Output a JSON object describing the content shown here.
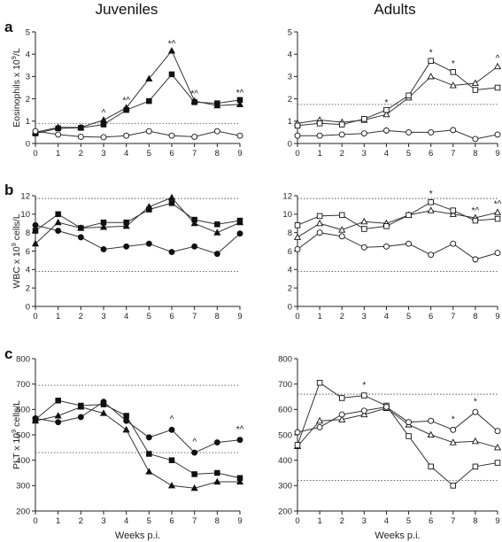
{
  "column_titles": [
    "Juveniles",
    "Adults"
  ],
  "chart_data": [
    {
      "id": "a-juveniles",
      "panel": "a",
      "column": "Juveniles",
      "type": "line",
      "ylabel_main": "Eosinophils x 10",
      "ylabel_sup": "9",
      "ylabel_tail": "/L",
      "xlabel": "",
      "ylim": [
        0,
        5
      ],
      "yticks": [
        0,
        1,
        2,
        3,
        4,
        5
      ],
      "x": [
        0,
        1,
        2,
        3,
        4,
        5,
        6,
        7,
        8,
        9
      ],
      "reference_lines": [
        0.9
      ],
      "series": [
        {
          "marker": "filled-triangle",
          "values": [
            0.5,
            0.72,
            0.72,
            1.05,
            1.6,
            2.9,
            4.15,
            1.9,
            1.7,
            1.75
          ]
        },
        {
          "marker": "filled-square",
          "values": [
            0.45,
            0.68,
            0.7,
            0.85,
            1.5,
            1.9,
            3.1,
            1.85,
            1.8,
            1.95
          ]
        },
        {
          "marker": "open-circle",
          "values": [
            0.55,
            0.4,
            0.3,
            0.28,
            0.35,
            0.55,
            0.35,
            0.3,
            0.55,
            0.35
          ]
        }
      ],
      "annotations": [
        {
          "x": 3,
          "y": 1.25,
          "text": "^"
        },
        {
          "x": 4,
          "y": 1.8,
          "text": "*^"
        },
        {
          "x": 6,
          "y": 4.35,
          "text": "*^"
        },
        {
          "x": 7,
          "y": 2.1,
          "text": "*^"
        },
        {
          "x": 9,
          "y": 2.15,
          "text": "*^"
        }
      ]
    },
    {
      "id": "a-adults",
      "panel": "a",
      "column": "Adults",
      "type": "line",
      "ylabel_main": "",
      "ylabel_sup": "",
      "ylabel_tail": "",
      "xlabel": "",
      "ylim": [
        0,
        5
      ],
      "yticks": [
        0,
        1,
        2,
        3,
        4,
        5
      ],
      "x": [
        0,
        1,
        2,
        3,
        4,
        5,
        6,
        7,
        8,
        9
      ],
      "reference_lines": [
        1.75
      ],
      "series": [
        {
          "marker": "open-triangle",
          "values": [
            0.9,
            1.05,
            0.95,
            1.05,
            1.3,
            2.05,
            3.0,
            2.6,
            2.7,
            3.45
          ]
        },
        {
          "marker": "open-square",
          "values": [
            0.8,
            0.9,
            0.85,
            1.1,
            1.5,
            2.15,
            3.7,
            3.2,
            2.4,
            2.5
          ]
        },
        {
          "marker": "open-circle",
          "values": [
            0.35,
            0.35,
            0.4,
            0.45,
            0.58,
            0.5,
            0.5,
            0.6,
            0.2,
            0.4
          ]
        }
      ],
      "annotations": [
        {
          "x": 4,
          "y": 1.7,
          "text": "*"
        },
        {
          "x": 6,
          "y": 3.95,
          "text": "*"
        },
        {
          "x": 7,
          "y": 3.45,
          "text": "*"
        },
        {
          "x": 9,
          "y": 3.7,
          "text": "^"
        }
      ]
    },
    {
      "id": "b-juveniles",
      "panel": "b",
      "column": "Juveniles",
      "type": "line",
      "ylabel_main": "WBC x 10",
      "ylabel_sup": "9",
      "ylabel_tail": " cells/L",
      "xlabel": "",
      "ylim": [
        0,
        12
      ],
      "yticks": [
        0,
        2,
        4,
        6,
        8,
        10,
        12
      ],
      "x": [
        0,
        1,
        2,
        3,
        4,
        5,
        6,
        7,
        8,
        9
      ],
      "reference_lines": [
        11.7,
        3.8
      ],
      "series": [
        {
          "marker": "filled-triangle",
          "values": [
            6.8,
            9.1,
            8.5,
            8.6,
            8.7,
            10.8,
            11.8,
            9.0,
            8.0,
            9.1
          ]
        },
        {
          "marker": "filled-square",
          "values": [
            8.2,
            10.0,
            8.5,
            9.1,
            9.1,
            10.5,
            11.2,
            9.4,
            8.9,
            9.3
          ]
        },
        {
          "marker": "filled-circle",
          "values": [
            8.8,
            8.2,
            7.5,
            6.2,
            6.5,
            6.8,
            5.9,
            6.5,
            5.7,
            7.9
          ]
        }
      ],
      "annotations": []
    },
    {
      "id": "b-adults",
      "panel": "b",
      "column": "Adults",
      "type": "line",
      "ylabel_main": "",
      "ylabel_sup": "",
      "ylabel_tail": "",
      "xlabel": "",
      "ylim": [
        0,
        12
      ],
      "yticks": [
        0,
        2,
        4,
        6,
        8,
        10,
        12
      ],
      "x": [
        0,
        1,
        2,
        3,
        4,
        5,
        6,
        7,
        8,
        9
      ],
      "reference_lines": [
        11.7,
        3.8
      ],
      "series": [
        {
          "marker": "open-triangle",
          "values": [
            7.5,
            9.0,
            8.3,
            9.2,
            9.0,
            9.9,
            10.4,
            10.0,
            9.6,
            10.2
          ]
        },
        {
          "marker": "open-square",
          "values": [
            8.8,
            9.8,
            9.9,
            8.4,
            8.7,
            9.9,
            11.3,
            10.4,
            9.3,
            9.5
          ]
        },
        {
          "marker": "open-circle",
          "values": [
            6.2,
            8.0,
            7.6,
            6.4,
            6.5,
            6.8,
            5.6,
            6.8,
            5.1,
            5.8
          ]
        }
      ],
      "annotations": [
        {
          "x": 6,
          "y": 11.9,
          "text": "*"
        },
        {
          "x": 8,
          "y": 10.1,
          "text": "*^"
        },
        {
          "x": 9,
          "y": 10.8,
          "text": "*^"
        }
      ]
    },
    {
      "id": "c-juveniles",
      "panel": "c",
      "column": "Juveniles",
      "type": "line",
      "ylabel_main": "PLT x 10",
      "ylabel_sup": "9",
      "ylabel_tail": " cells/L",
      "xlabel": "Weeks p.i.",
      "ylim": [
        200,
        800
      ],
      "yticks": [
        200,
        300,
        400,
        500,
        600,
        700,
        800
      ],
      "x": [
        0,
        1,
        2,
        3,
        4,
        5,
        6,
        7,
        8,
        9
      ],
      "reference_lines": [
        695,
        430
      ],
      "series": [
        {
          "marker": "filled-triangle",
          "values": [
            555,
            575,
            610,
            585,
            520,
            355,
            300,
            290,
            315,
            315
          ]
        },
        {
          "marker": "filled-square",
          "values": [
            560,
            635,
            615,
            620,
            575,
            425,
            400,
            345,
            350,
            330
          ]
        },
        {
          "marker": "filled-circle",
          "values": [
            565,
            550,
            570,
            630,
            555,
            490,
            520,
            430,
            470,
            480
          ]
        }
      ],
      "annotations": [
        {
          "x": 6,
          "y": 550,
          "text": "^"
        },
        {
          "x": 7,
          "y": 462,
          "text": "^"
        },
        {
          "x": 9,
          "y": 510,
          "text": "*^"
        }
      ]
    },
    {
      "id": "c-adults",
      "panel": "c",
      "column": "Adults",
      "type": "line",
      "ylabel_main": "",
      "ylabel_sup": "",
      "ylabel_tail": "",
      "xlabel": "Weeks p.i.",
      "ylim": [
        200,
        800
      ],
      "yticks": [
        200,
        300,
        400,
        500,
        600,
        700,
        800
      ],
      "x": [
        0,
        1,
        2,
        3,
        4,
        5,
        6,
        7,
        8,
        9
      ],
      "reference_lines": [
        660,
        320
      ],
      "series": [
        {
          "marker": "open-triangle",
          "values": [
            455,
            555,
            560,
            580,
            605,
            540,
            500,
            470,
            475,
            450
          ]
        },
        {
          "marker": "open-square",
          "values": [
            460,
            705,
            645,
            655,
            615,
            495,
            375,
            300,
            375,
            390
          ]
        },
        {
          "marker": "open-circle",
          "values": [
            510,
            530,
            580,
            595,
            610,
            550,
            555,
            520,
            590,
            515
          ]
        }
      ],
      "annotations": [
        {
          "x": 3,
          "y": 685,
          "text": "*"
        },
        {
          "x": 7,
          "y": 550,
          "text": "*"
        },
        {
          "x": 8,
          "y": 620,
          "text": "*"
        }
      ]
    }
  ]
}
